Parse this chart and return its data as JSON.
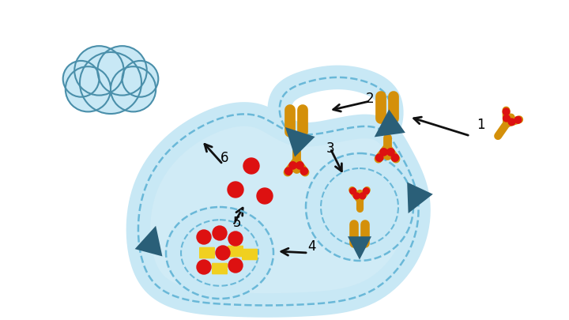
{
  "bg_color": "#ffffff",
  "path_fill_color": "#c8e8f5",
  "path_edge_color": "#7ec8e0",
  "dashed_color": "#6ab8d8",
  "receptor_color": "#d4900a",
  "receptor_dot_color": "#dd1111",
  "antibody_color": "#d4900a",
  "triangle_color": "#2a5f78",
  "endosome_color": "#c8e8f5",
  "lysosome_color": "#c8e8f5",
  "drug_dot_color": "#dd1111",
  "drug_rect_color": "#f0d020",
  "cloud_color": "#c8e8f5",
  "cloud_edge_color": "#4a8faa",
  "arrow_color": "#111111",
  "figw": 7.2,
  "figh": 4.05,
  "dpi": 100
}
